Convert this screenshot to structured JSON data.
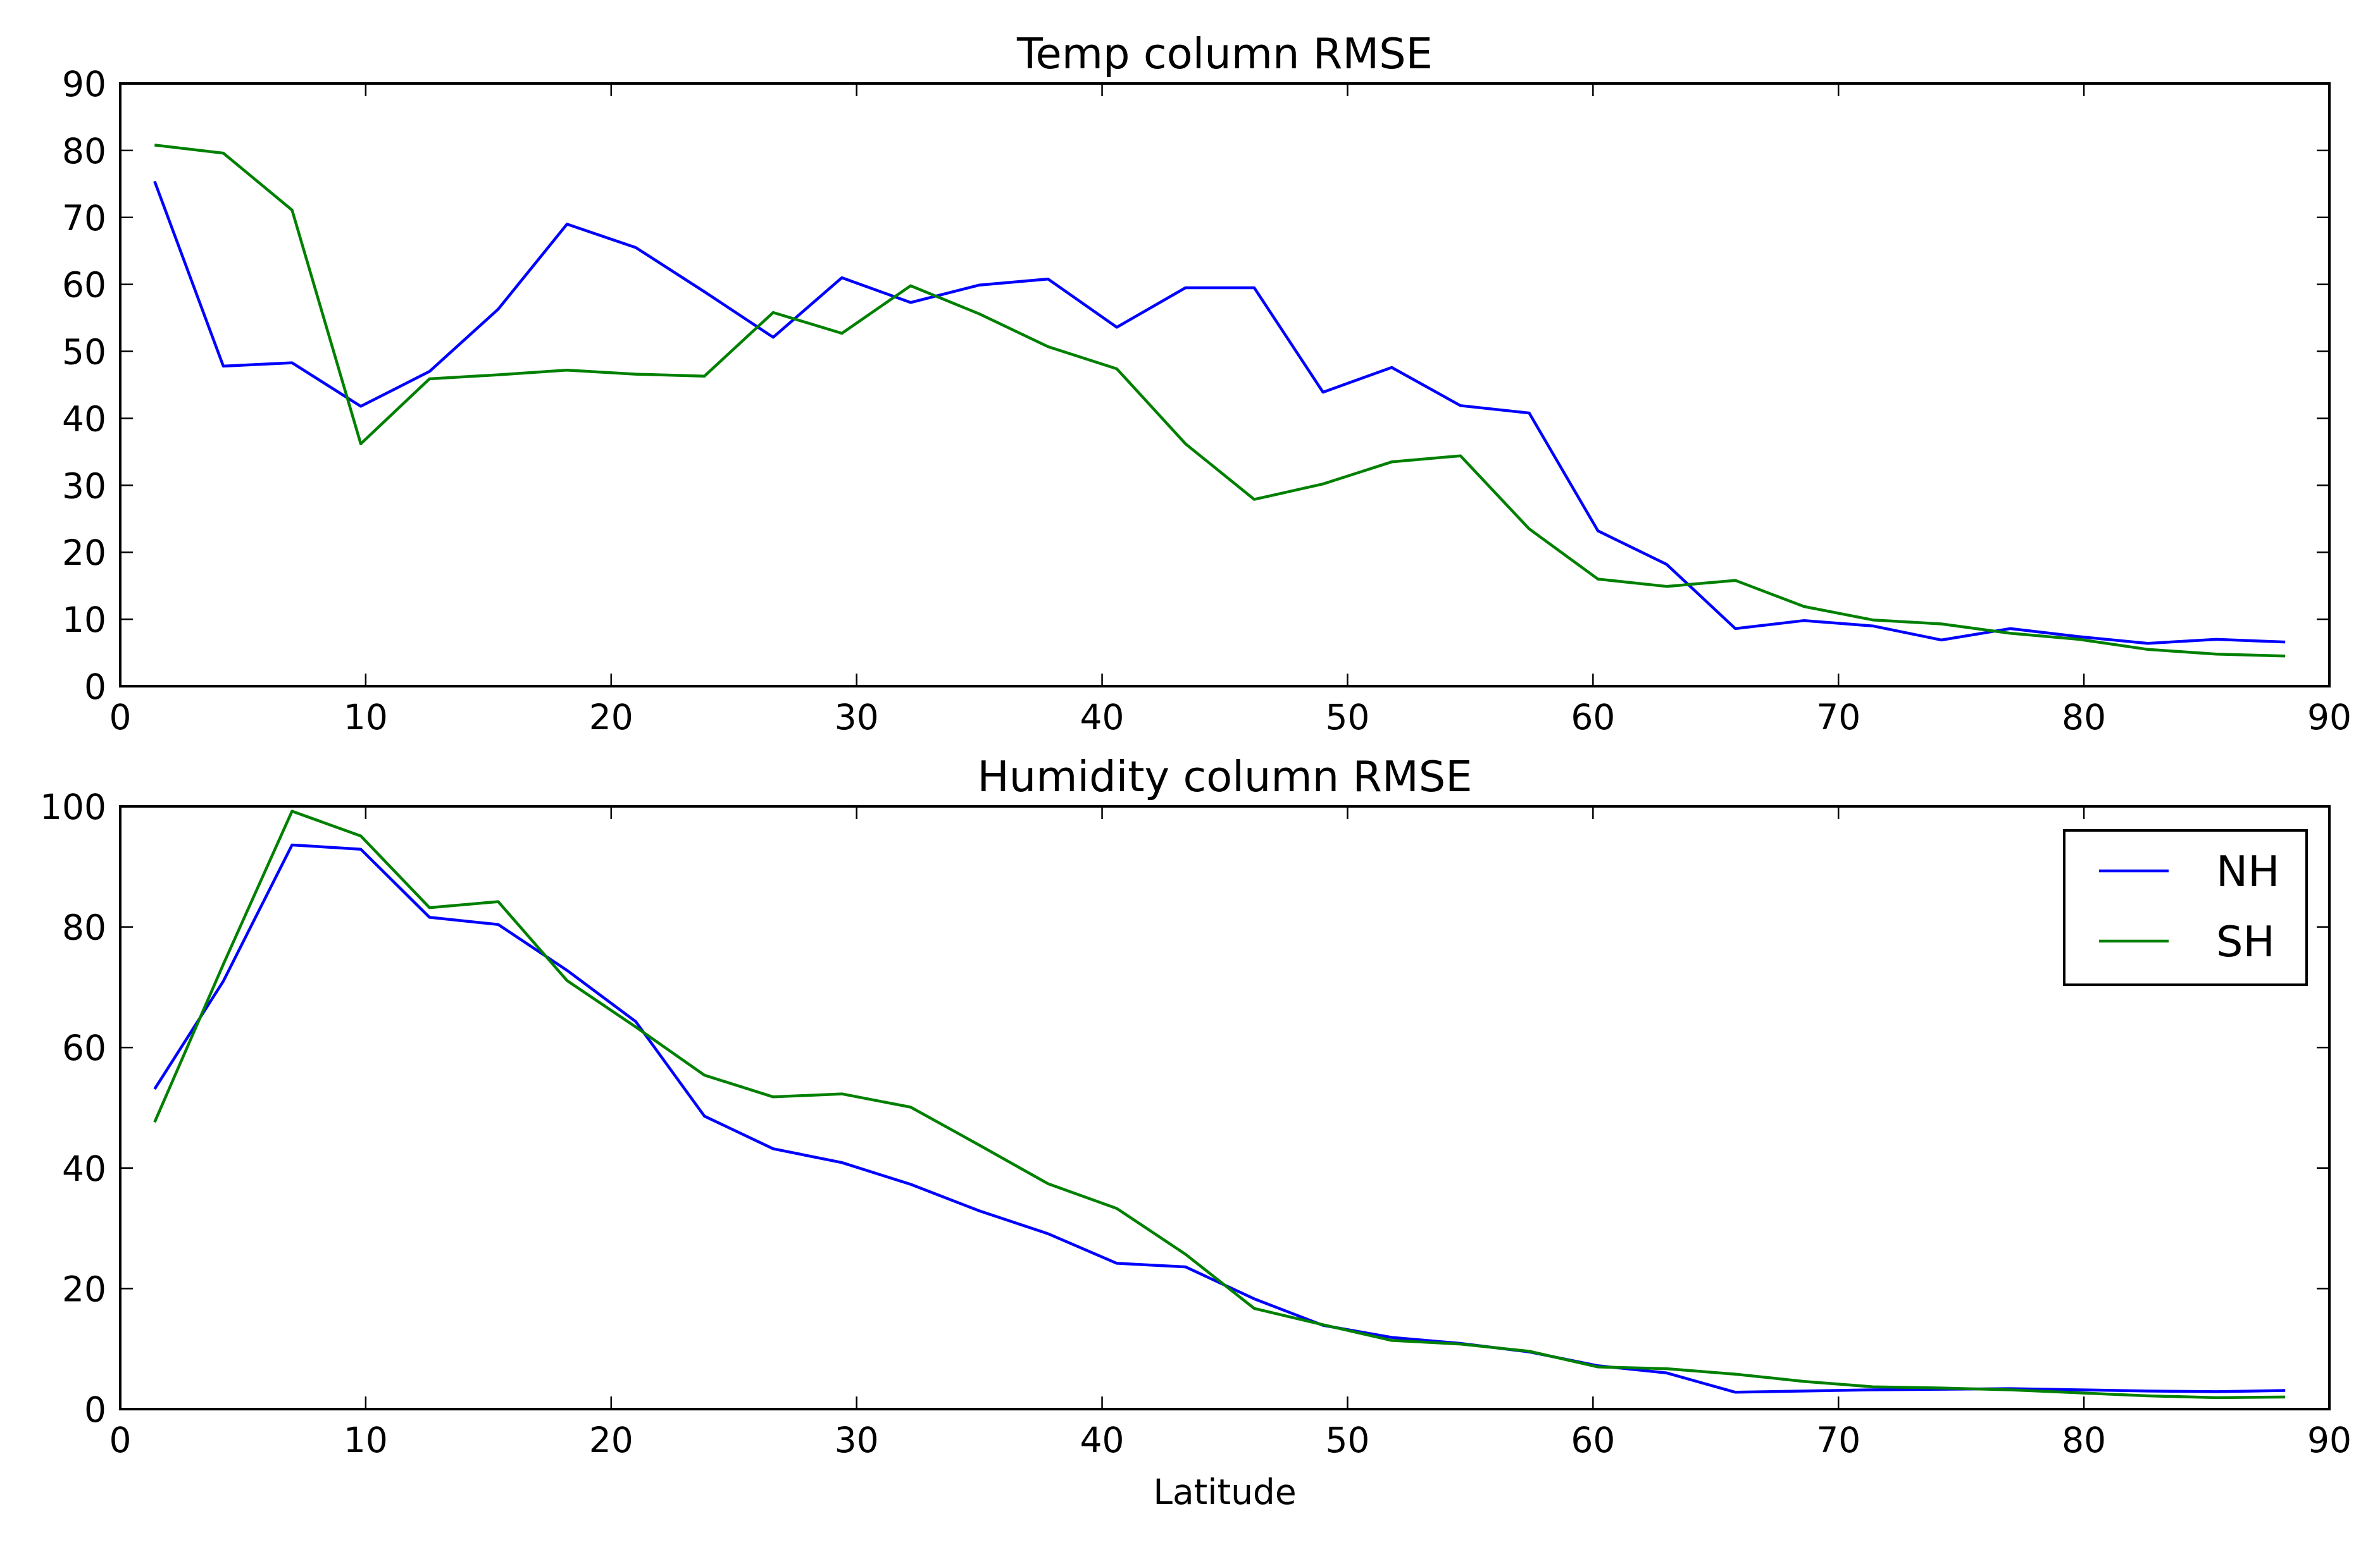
{
  "colors": {
    "NH": "#0000ff",
    "SH": "#008000"
  },
  "chart_data": [
    {
      "type": "line",
      "title": "Temp column RMSE",
      "xlabel": "",
      "ylabel": "",
      "xlim": [
        0,
        90
      ],
      "ylim": [
        0,
        90
      ],
      "xticks": [
        0,
        10,
        20,
        30,
        40,
        50,
        60,
        70,
        80,
        90
      ],
      "yticks": [
        0,
        10,
        20,
        30,
        40,
        50,
        60,
        70,
        80,
        90
      ],
      "grid": false,
      "x": [
        1.4,
        4.2,
        7.0,
        9.8,
        12.6,
        15.4,
        18.2,
        21.0,
        23.8,
        26.6,
        29.4,
        32.2,
        35.0,
        37.8,
        40.6,
        43.4,
        46.2,
        49.0,
        51.8,
        54.6,
        57.4,
        60.2,
        63.0,
        65.8,
        68.6,
        71.4,
        74.2,
        77.0,
        79.8,
        82.6,
        85.4,
        88.2
      ],
      "series": [
        {
          "name": "NH",
          "color": "#0000ff",
          "values": [
            75.4,
            47.8,
            48.3,
            41.8,
            47.0,
            56.3,
            69.0,
            65.5,
            58.9,
            52.1,
            61.0,
            57.3,
            59.9,
            60.8,
            53.6,
            59.5,
            59.5,
            43.9,
            47.6,
            41.9,
            40.8,
            23.2,
            18.2,
            8.6,
            9.8,
            9.0,
            6.9,
            8.6,
            7.4,
            6.4,
            7.0,
            6.6
          ]
        },
        {
          "name": "SH",
          "color": "#008000",
          "values": [
            80.8,
            79.6,
            71.1,
            36.2,
            45.9,
            46.5,
            47.2,
            46.6,
            46.3,
            55.8,
            52.7,
            59.8,
            55.6,
            50.7,
            47.4,
            36.2,
            27.9,
            30.2,
            33.5,
            34.4,
            23.5,
            16.0,
            14.9,
            15.8,
            11.9,
            9.9,
            9.3,
            7.9,
            7.0,
            5.5,
            4.8,
            4.5
          ]
        }
      ]
    },
    {
      "type": "line",
      "title": "Humidity column RMSE",
      "xlabel": "Latitude",
      "ylabel": "",
      "xlim": [
        0,
        90
      ],
      "ylim": [
        0,
        100
      ],
      "xticks": [
        0,
        10,
        20,
        30,
        40,
        50,
        60,
        70,
        80,
        90
      ],
      "yticks": [
        0,
        20,
        40,
        60,
        80,
        100
      ],
      "grid": false,
      "legend": {
        "placement": "top-right",
        "entries": [
          "NH",
          "SH"
        ]
      },
      "x": [
        1.4,
        4.2,
        7.0,
        9.8,
        12.6,
        15.4,
        18.2,
        21.0,
        23.8,
        26.6,
        29.4,
        32.2,
        35.0,
        37.8,
        40.6,
        43.4,
        46.2,
        49.0,
        51.8,
        54.6,
        57.4,
        60.2,
        63.0,
        65.8,
        68.6,
        71.4,
        74.2,
        77.0,
        79.8,
        82.6,
        85.4,
        88.2
      ],
      "series": [
        {
          "name": "NH",
          "color": "#0000ff",
          "values": [
            53.1,
            71.0,
            93.6,
            92.9,
            81.6,
            80.4,
            72.8,
            64.3,
            48.6,
            43.2,
            40.9,
            37.3,
            32.9,
            29.1,
            24.2,
            23.6,
            18.3,
            13.9,
            11.9,
            10.9,
            9.5,
            7.2,
            6.0,
            2.8,
            3.0,
            3.2,
            3.3,
            3.4,
            3.2,
            3.0,
            2.9,
            3.1
          ]
        },
        {
          "name": "SH",
          "color": "#008000",
          "values": [
            47.6,
            73.8,
            99.2,
            95.1,
            83.2,
            84.2,
            71.1,
            63.4,
            55.4,
            51.8,
            52.3,
            50.1,
            43.8,
            37.4,
            33.3,
            25.7,
            16.7,
            14.0,
            11.4,
            10.8,
            9.6,
            7.0,
            6.7,
            5.8,
            4.6,
            3.7,
            3.5,
            3.2,
            2.7,
            2.2,
            1.9,
            2.0
          ]
        }
      ]
    }
  ]
}
